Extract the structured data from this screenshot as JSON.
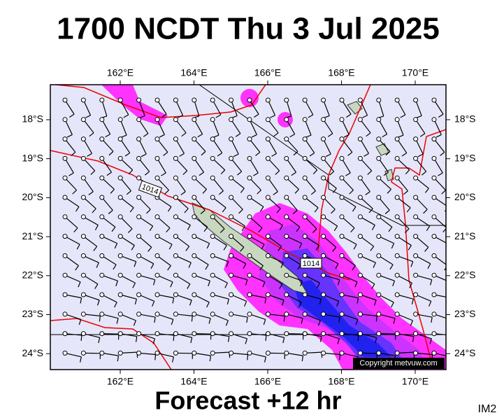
{
  "title": "1700 NCDT Thu 3 Jul 2025",
  "lon_labels": [
    "162°E",
    "164°E",
    "166°E",
    "168°E",
    "170°E"
  ],
  "lat_labels": [
    "18°S",
    "19°S",
    "20°S",
    "21°S",
    "22°S",
    "23°S",
    "24°S"
  ],
  "isobar_labels": [
    "1014",
    "1014"
  ],
  "copyright": "Copyright metvuw.com",
  "footer": "Forecast +12 hr",
  "image_id": "IM2"
}
